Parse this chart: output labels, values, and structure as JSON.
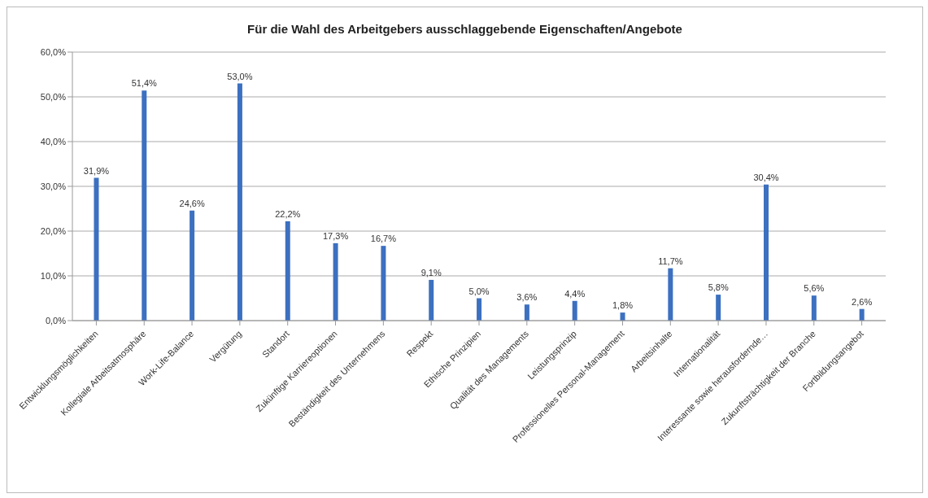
{
  "chart_data": {
    "type": "bar",
    "title": "Für die Wahl des Arbeitgebers ausschlaggebende Eigenschaften/Angebote",
    "categories": [
      "Entwicklungsmöglichkeiten",
      "Kollegiale Arbeitsatmosphäre",
      "Work-Life-Balance",
      "Vergütung",
      "Standort",
      "Zukünftige Karriereoptionen",
      "Beständigkeit des Unternehmens",
      "Respekt",
      "Ethische Prinzipien",
      "Qualität des Managements",
      "Leistungsprinzip",
      "Professionelles Personal-Management",
      "Arbeitsinhalte",
      "Internationalität",
      "Interessante sowie herausfordernde…",
      "Zukunftsträchtigkeit der Branche",
      "Fortbildungsangebot"
    ],
    "values": [
      31.9,
      51.4,
      24.6,
      53.0,
      22.2,
      17.3,
      16.7,
      9.1,
      5.0,
      3.6,
      4.4,
      1.8,
      11.7,
      5.8,
      30.4,
      5.6,
      2.6
    ],
    "value_labels": [
      "31,9%",
      "51,4%",
      "24,6%",
      "53,0%",
      "22,2%",
      "17,3%",
      "16,7%",
      "9,1%",
      "5,0%",
      "3,6%",
      "4,4%",
      "1,8%",
      "11,7%",
      "5,8%",
      "30,4%",
      "5,6%",
      "2,6%"
    ],
    "color": "#3c70c0",
    "ylim": [
      0,
      60
    ],
    "yticks": [
      {
        "value": 0,
        "label": "0,0%"
      },
      {
        "value": 10,
        "label": "10,0%"
      },
      {
        "value": 20,
        "label": "20,0%"
      },
      {
        "value": 30,
        "label": "30,0%"
      },
      {
        "value": 40,
        "label": "40,0%"
      },
      {
        "value": 50,
        "label": "50,0%"
      },
      {
        "value": 60,
        "label": "60,0%"
      }
    ],
    "grid": "y"
  }
}
